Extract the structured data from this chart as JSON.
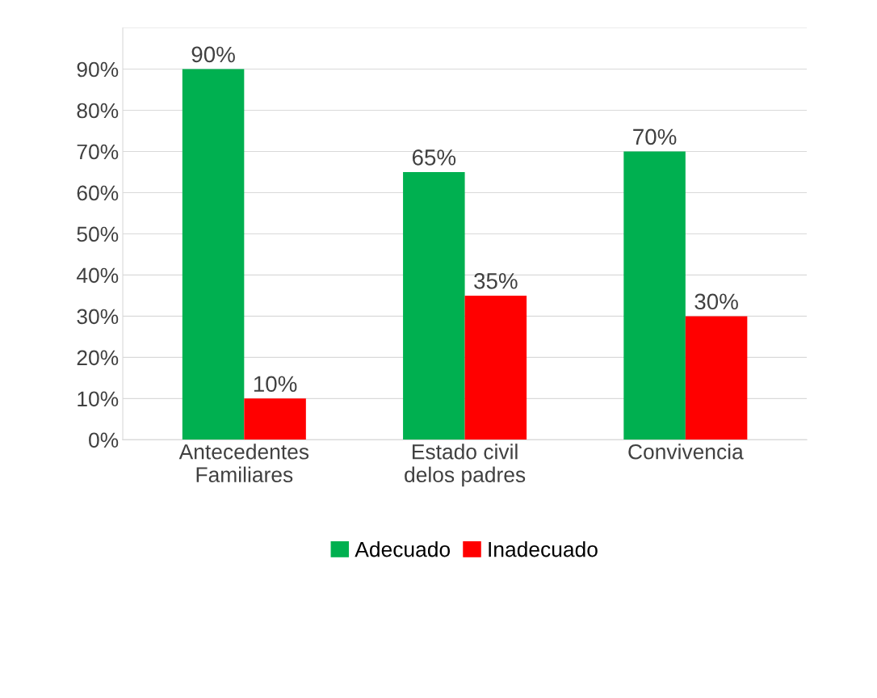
{
  "chart_data": {
    "type": "bar",
    "categories": [
      "Antecedentes\nFamiliares",
      "Estado civil\ndelos padres",
      "Convivencia"
    ],
    "series": [
      {
        "name": "Adecuado",
        "color": "#00b050",
        "values": [
          90,
          65,
          70
        ],
        "value_labels": [
          "90%",
          "65%",
          "70%"
        ]
      },
      {
        "name": "Inadecuado",
        "color": "#ff0000",
        "values": [
          10,
          35,
          30
        ],
        "value_labels": [
          "10%",
          "35%",
          "30%"
        ]
      }
    ],
    "ylim": [
      0,
      100
    ],
    "yticks": [
      {
        "value": 0,
        "label": "0%"
      },
      {
        "value": 10,
        "label": "10%"
      },
      {
        "value": 20,
        "label": "20%"
      },
      {
        "value": 30,
        "label": "30%"
      },
      {
        "value": 40,
        "label": "40%"
      },
      {
        "value": 50,
        "label": "50%"
      },
      {
        "value": 60,
        "label": "60%"
      },
      {
        "value": 70,
        "label": "70%"
      },
      {
        "value": 80,
        "label": "80%"
      },
      {
        "value": 90,
        "label": "90%"
      },
      {
        "value": 100,
        "label": null
      }
    ],
    "grid": "y",
    "legend": "bottom"
  }
}
